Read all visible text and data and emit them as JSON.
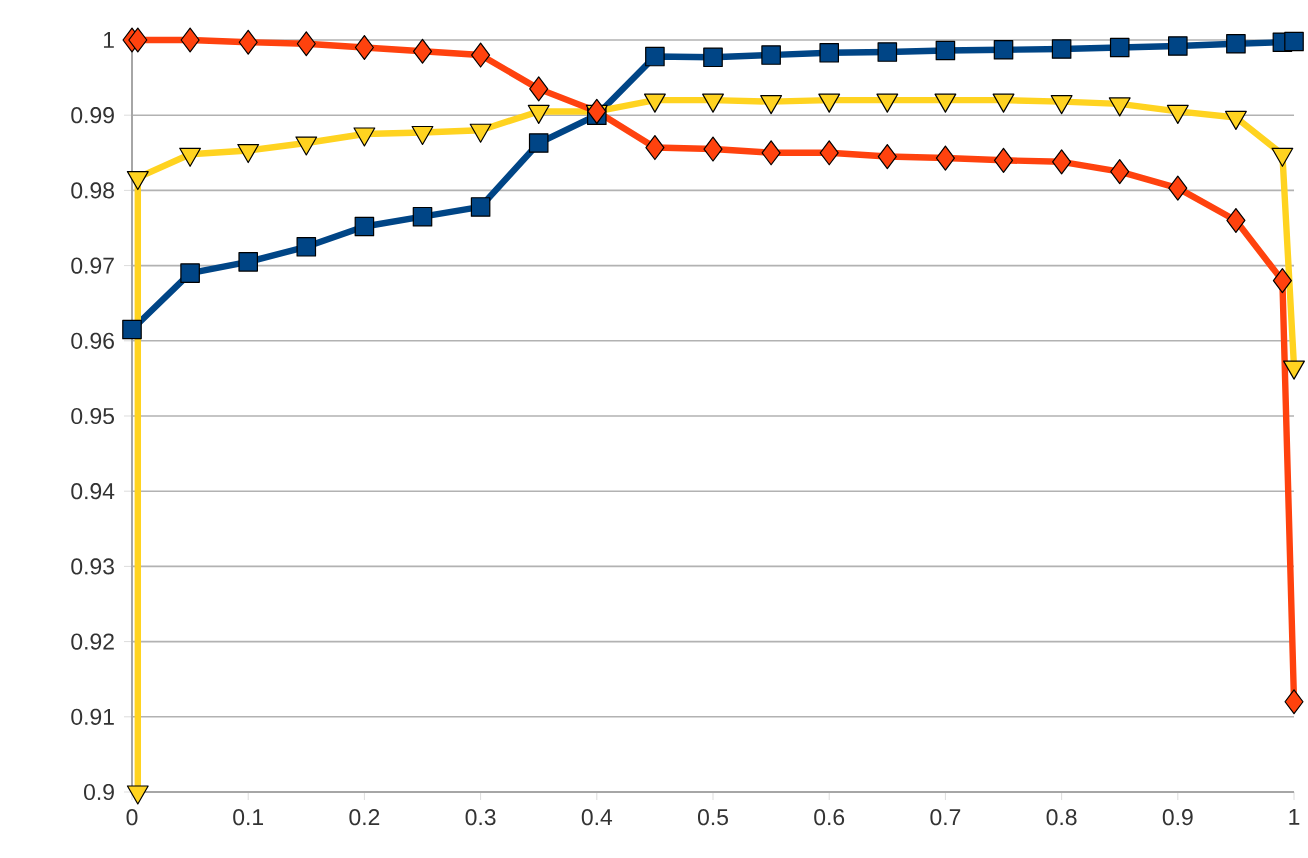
{
  "chart_data": {
    "type": "line",
    "xlim": [
      0,
      1
    ],
    "ylim": [
      0.9,
      1
    ],
    "xticks": [
      0,
      0.1,
      0.2,
      0.3,
      0.4,
      0.5,
      0.6,
      0.7,
      0.8,
      0.9,
      1
    ],
    "yticks": [
      0.9,
      0.91,
      0.92,
      0.93,
      0.94,
      0.95,
      0.96,
      0.97,
      0.98,
      0.99,
      1
    ],
    "grid": "y",
    "series": [
      {
        "color": "#004586",
        "marker": "square",
        "x": [
          0,
          0.05,
          0.1,
          0.15,
          0.2,
          0.25,
          0.3,
          0.35,
          0.4,
          0.45,
          0.5,
          0.55,
          0.6,
          0.65,
          0.7,
          0.75,
          0.8,
          0.85,
          0.9,
          0.95,
          0.99,
          1
        ],
        "values": [
          0.9615,
          0.969,
          0.9705,
          0.9725,
          0.9752,
          0.9765,
          0.9778,
          0.9863,
          0.99,
          0.9978,
          0.9977,
          0.998,
          0.9983,
          0.9984,
          0.9986,
          0.9987,
          0.9988,
          0.999,
          0.9992,
          0.9995,
          0.9997,
          0.9998
        ]
      },
      {
        "color": "#ffd320",
        "marker": "triangle",
        "x": [
          0.005,
          0.005,
          0.05,
          0.1,
          0.15,
          0.2,
          0.25,
          0.3,
          0.35,
          0.4,
          0.45,
          0.5,
          0.55,
          0.6,
          0.65,
          0.7,
          0.75,
          0.8,
          0.85,
          0.9,
          0.95,
          0.99,
          1
        ],
        "values": [
          0.9,
          0.9817,
          0.9848,
          0.9853,
          0.9863,
          0.9875,
          0.9877,
          0.988,
          0.9905,
          0.9905,
          0.992,
          0.992,
          0.9918,
          0.992,
          0.992,
          0.992,
          0.992,
          0.9918,
          0.9915,
          0.9905,
          0.9897,
          0.9848,
          0.9565
        ]
      },
      {
        "color": "#ff420e",
        "marker": "diamond",
        "x": [
          0,
          0.005,
          0.05,
          0.1,
          0.15,
          0.2,
          0.25,
          0.3,
          0.35,
          0.4,
          0.45,
          0.5,
          0.55,
          0.6,
          0.65,
          0.7,
          0.75,
          0.8,
          0.85,
          0.9,
          0.95,
          0.99,
          1
        ],
        "values": [
          1,
          1,
          1,
          0.9997,
          0.9995,
          0.999,
          0.9985,
          0.998,
          0.9935,
          0.9905,
          0.9857,
          0.9855,
          0.985,
          0.985,
          0.9845,
          0.9843,
          0.984,
          0.9838,
          0.9825,
          0.9803,
          0.976,
          0.968,
          0.912
        ]
      }
    ]
  }
}
